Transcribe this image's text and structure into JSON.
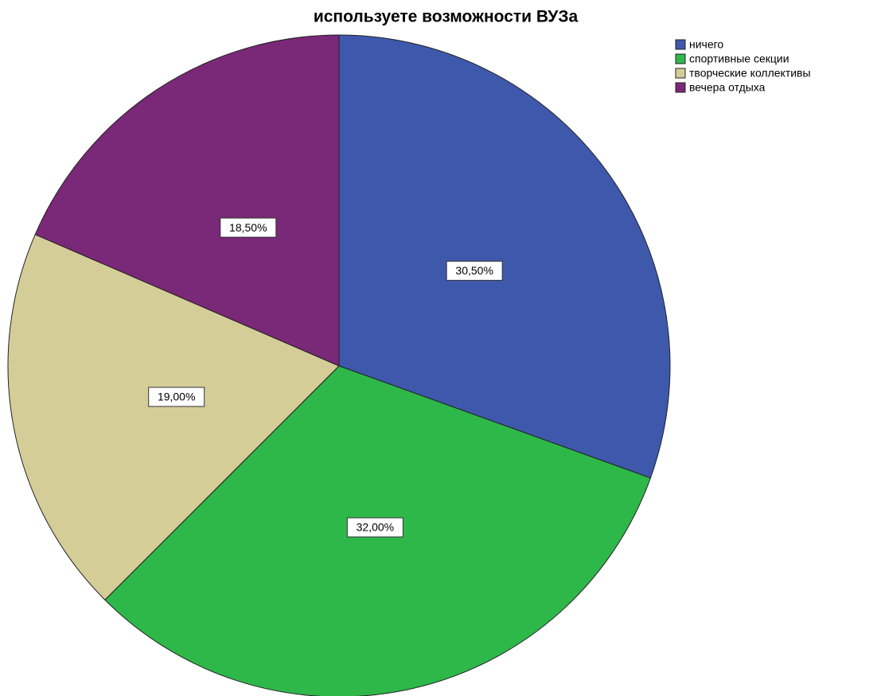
{
  "chart_data": {
    "type": "pie",
    "title": "используете возможности ВУЗа",
    "categories": [
      "ничего",
      "спортивные секции",
      "творческие коллективы",
      "вечера отдыха"
    ],
    "values": [
      30.5,
      32,
      19,
      18.5
    ],
    "value_labels": [
      "30,50%",
      "32,00%",
      "19,00%",
      "18,50%"
    ],
    "colors": [
      "#3e58ac",
      "#2eb84a",
      "#d5cd98",
      "#7a2878"
    ]
  }
}
